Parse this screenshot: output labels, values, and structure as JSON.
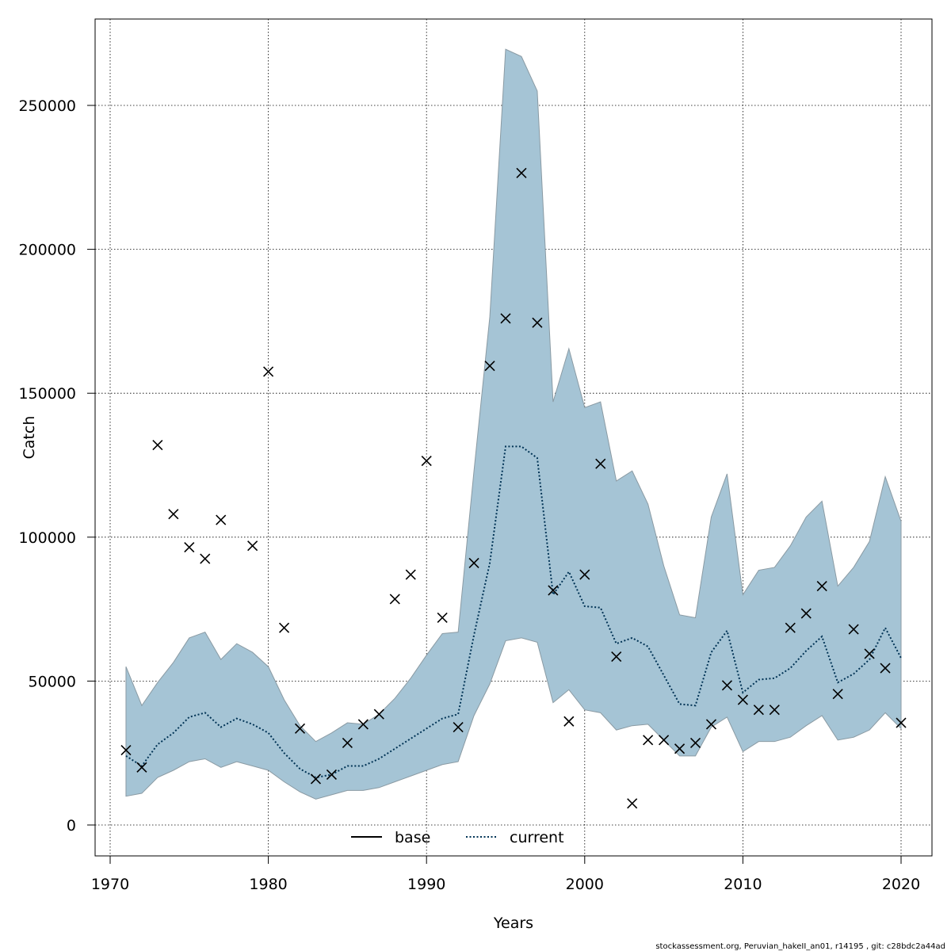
{
  "chart_data": {
    "type": "line",
    "xlabel": "Years",
    "ylabel": "Catch",
    "xlim": [
      1970,
      2020
    ],
    "ylim": [
      0,
      250000
    ],
    "x_ticks": [
      1970,
      1980,
      1990,
      2000,
      2010,
      2020
    ],
    "y_ticks": [
      0,
      50000,
      100000,
      150000,
      200000,
      250000
    ],
    "grid": true,
    "legend": {
      "placement": "bottom-center",
      "entries": [
        {
          "label": "base",
          "style": "solid",
          "color": "#000000"
        },
        {
          "label": "current",
          "style": "dotted",
          "color": "#003355"
        }
      ]
    },
    "colors": {
      "band_fill": "#a5c4d5",
      "band_stroke": "#8a9aa3",
      "observed_marker": "#000000"
    },
    "years": [
      1971,
      1972,
      1973,
      1974,
      1975,
      1976,
      1977,
      1978,
      1979,
      1980,
      1981,
      1982,
      1983,
      1984,
      1985,
      1986,
      1987,
      1988,
      1989,
      1990,
      1991,
      1992,
      1993,
      1994,
      1995,
      1996,
      1997,
      1998,
      1999,
      2000,
      2001,
      2002,
      2003,
      2004,
      2005,
      2006,
      2007,
      2008,
      2009,
      2010,
      2011,
      2012,
      2013,
      2014,
      2015,
      2016,
      2017,
      2018,
      2019,
      2020
    ],
    "series": [
      {
        "name": "current",
        "values": [
          24000,
          20500,
          28000,
          32000,
          37500,
          39000,
          34000,
          37000,
          35000,
          32000,
          25000,
          19500,
          16500,
          17500,
          20500,
          20500,
          23000,
          26500,
          30000,
          33500,
          37000,
          38500,
          66000,
          91000,
          131500,
          131500,
          127500,
          80000,
          88000,
          76000,
          75500,
          63000,
          65000,
          62000,
          52000,
          42000,
          41500,
          60000,
          67500,
          46000,
          50500,
          51000,
          54500,
          60500,
          65500,
          49500,
          52500,
          57500,
          68500,
          58000
        ]
      },
      {
        "name": "band_upper",
        "values": [
          55000,
          41500,
          49500,
          56500,
          65000,
          67000,
          57500,
          63000,
          60000,
          55000,
          43500,
          34500,
          29000,
          32000,
          35500,
          35000,
          38500,
          44000,
          51000,
          59000,
          66500,
          67000,
          123000,
          176500,
          269500,
          267000,
          255000,
          147000,
          165500,
          145000,
          147000,
          119500,
          123000,
          111500,
          90000,
          73000,
          72000,
          107000,
          122000,
          80000,
          88500,
          89500,
          97000,
          107000,
          112500,
          83000,
          89500,
          98500,
          121000,
          105500
        ]
      },
      {
        "name": "band_lower",
        "values": [
          10000,
          11000,
          16500,
          19000,
          22000,
          23000,
          20000,
          22000,
          20500,
          19000,
          15000,
          11500,
          9000,
          10500,
          12000,
          12000,
          13000,
          15000,
          17000,
          19000,
          21000,
          22000,
          38000,
          49000,
          64000,
          65000,
          63500,
          42500,
          47000,
          40000,
          39000,
          33000,
          34500,
          35000,
          29500,
          24000,
          24000,
          34000,
          37500,
          25500,
          29000,
          29000,
          30500,
          34500,
          38000,
          29500,
          30500,
          33000,
          39000,
          33500
        ]
      }
    ],
    "observed": {
      "marker": "x",
      "values": [
        26000,
        20000,
        132000,
        108000,
        96500,
        92500,
        106000,
        null,
        97000,
        157500,
        68500,
        33500,
        16000,
        17500,
        28500,
        35000,
        38500,
        78500,
        87000,
        126500,
        72000,
        34000,
        91000,
        159500,
        176000,
        226500,
        174500,
        81500,
        36000,
        87000,
        125500,
        58500,
        7500,
        29500,
        29500,
        26500,
        28500,
        35000,
        48500,
        43500,
        40000,
        40000,
        68500,
        73500,
        83000,
        45500,
        68000,
        59500,
        54500,
        35500
      ]
    }
  },
  "footer_text": "stockassessment.org, Peruvian_hakeII_an01, r14195 , git: c28bdc2a44ad"
}
